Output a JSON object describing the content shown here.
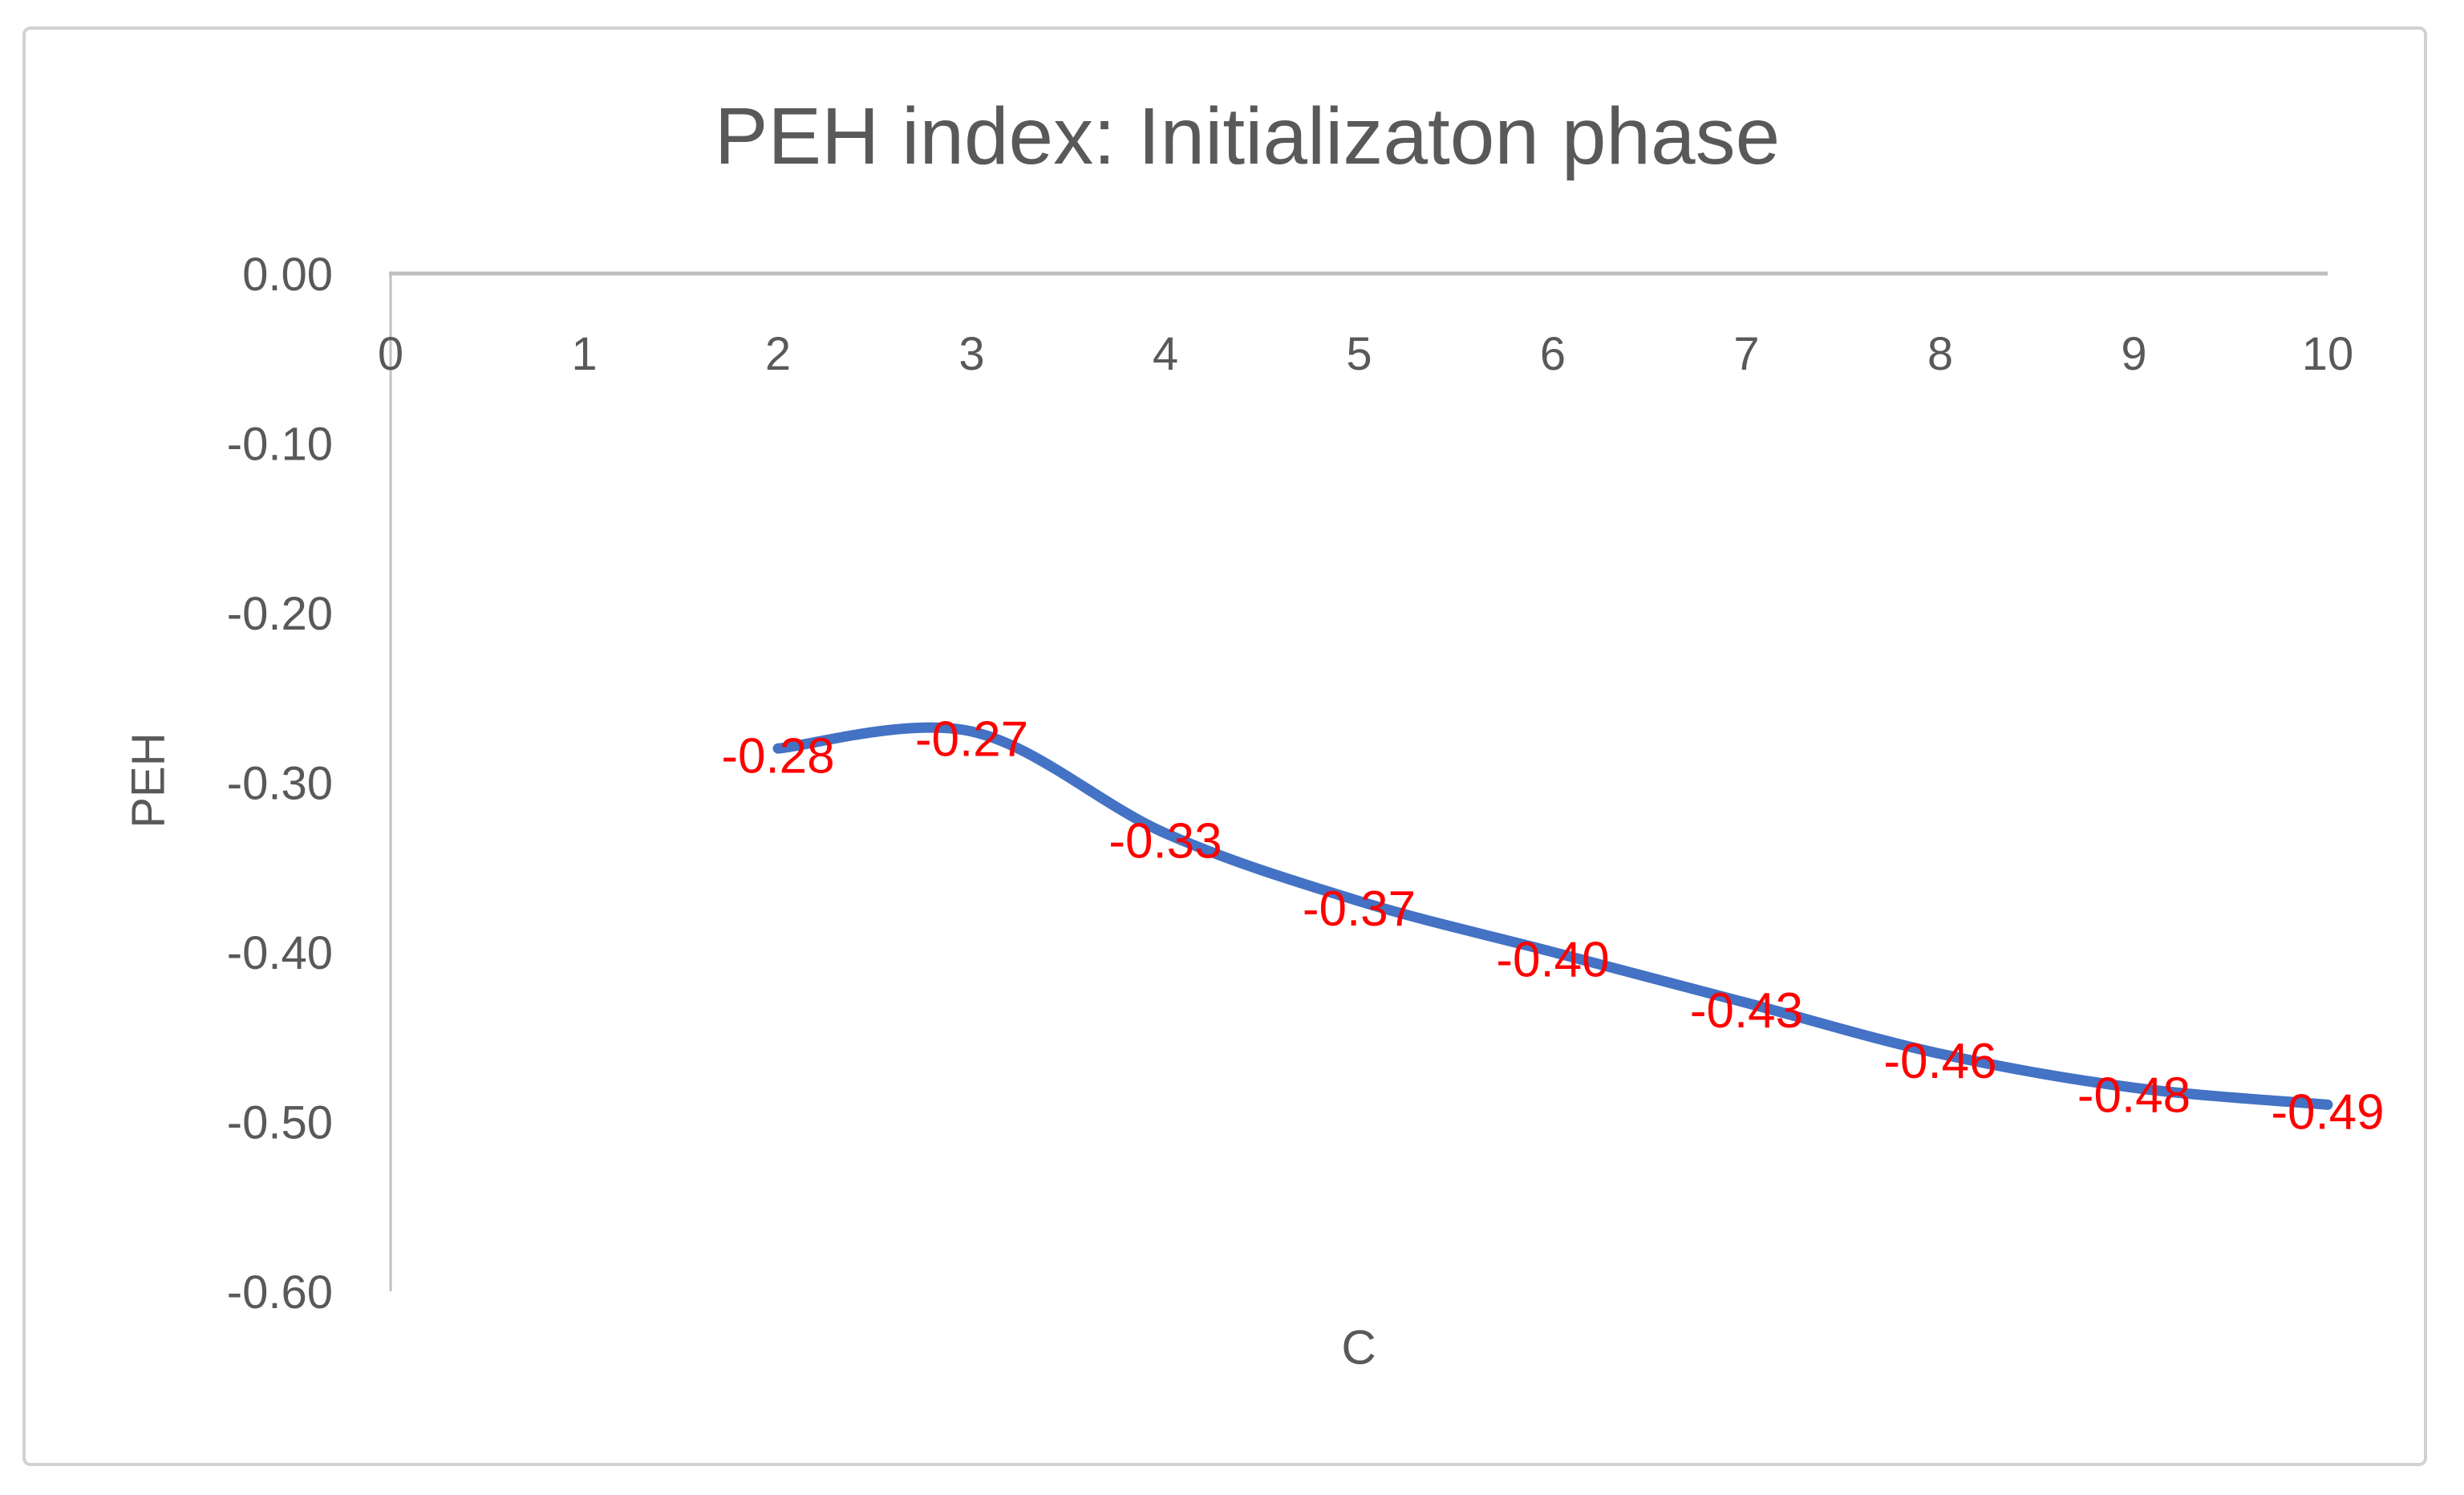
{
  "window": {
    "background_color": "#ffffff",
    "frame_border_color": "#d2d2d2"
  },
  "chart_data": {
    "type": "line",
    "title": "PEH index: Initializaton phase",
    "xlabel": "C",
    "ylabel": "PEH",
    "x": [
      2,
      3,
      4,
      5,
      6,
      7,
      8,
      9,
      10
    ],
    "series": [
      {
        "name": "PEH",
        "values": [
          -0.28,
          -0.27,
          -0.33,
          -0.37,
          -0.4,
          -0.43,
          -0.46,
          -0.48,
          -0.49
        ],
        "data_labels": [
          "-0.28",
          "-0.27",
          "-0.33",
          "-0.37",
          "-0.40",
          "-0.43",
          "-0.46",
          "-0.48",
          "-0.49"
        ]
      }
    ],
    "x_ticks": [
      "0",
      "1",
      "2",
      "3",
      "4",
      "5",
      "6",
      "7",
      "8",
      "9",
      "10"
    ],
    "y_ticks": [
      "0.00",
      "-0.10",
      "-0.20",
      "-0.30",
      "-0.40",
      "-0.50",
      "-0.60"
    ],
    "xlim": [
      0,
      10
    ],
    "ylim": [
      -0.6,
      0.0
    ],
    "grid": false,
    "legend": "none",
    "smooth": true,
    "data_label_position": "center",
    "line_color": "#4472c4",
    "data_label_color": "#ff0000",
    "axis_line_color": "#bfbfbf",
    "text_color": "#595959"
  }
}
